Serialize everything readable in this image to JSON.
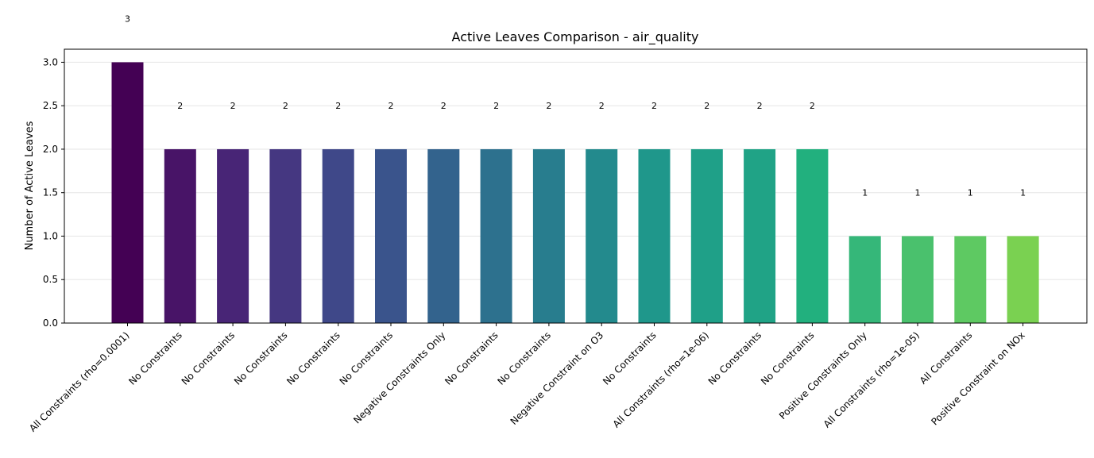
{
  "chart_data": {
    "type": "bar",
    "title": "Active Leaves Comparison - air_quality",
    "xlabel": "",
    "ylabel": "Number of Active Leaves",
    "ylim": [
      0,
      3.15
    ],
    "yticks": [
      "0.0",
      "0.5",
      "1.0",
      "1.5",
      "2.0",
      "2.5",
      "3.0"
    ],
    "grid": "horizontal",
    "colormap": "viridis",
    "categories": [
      "All Constraints (rho=0.0001)",
      "No Constraints",
      "No Constraints",
      "No Constraints",
      "No Constraints",
      "No Constraints",
      "Negative Constraints Only",
      "No Constraints",
      "No Constraints",
      "Negative Constraint on O3",
      "No Constraints",
      "All Constraints (rho=1e-06)",
      "No Constraints",
      "No Constraints",
      "Positive Constraints Only",
      "All Constraints (rho=1e-05)",
      "All Constraints",
      "Positive Constraint on NOx"
    ],
    "values": [
      3,
      2,
      2,
      2,
      2,
      2,
      2,
      2,
      2,
      2,
      2,
      2,
      2,
      2,
      1,
      1,
      1,
      1
    ],
    "value_labels": [
      "3",
      "2",
      "2",
      "2",
      "2",
      "2",
      "2",
      "2",
      "2",
      "2",
      "2",
      "2",
      "2",
      "2",
      "1",
      "1",
      "1",
      "1"
    ],
    "colors": [
      "#440154",
      "#481467",
      "#482576",
      "#453781",
      "#3f4889",
      "#3a548c",
      "#33638d",
      "#2d718e",
      "#287d8e",
      "#238a8d",
      "#1f978b",
      "#1fa088",
      "#20a386",
      "#22b07e",
      "#35b779",
      "#4ac16d",
      "#5ec962",
      "#7ad151"
    ]
  }
}
